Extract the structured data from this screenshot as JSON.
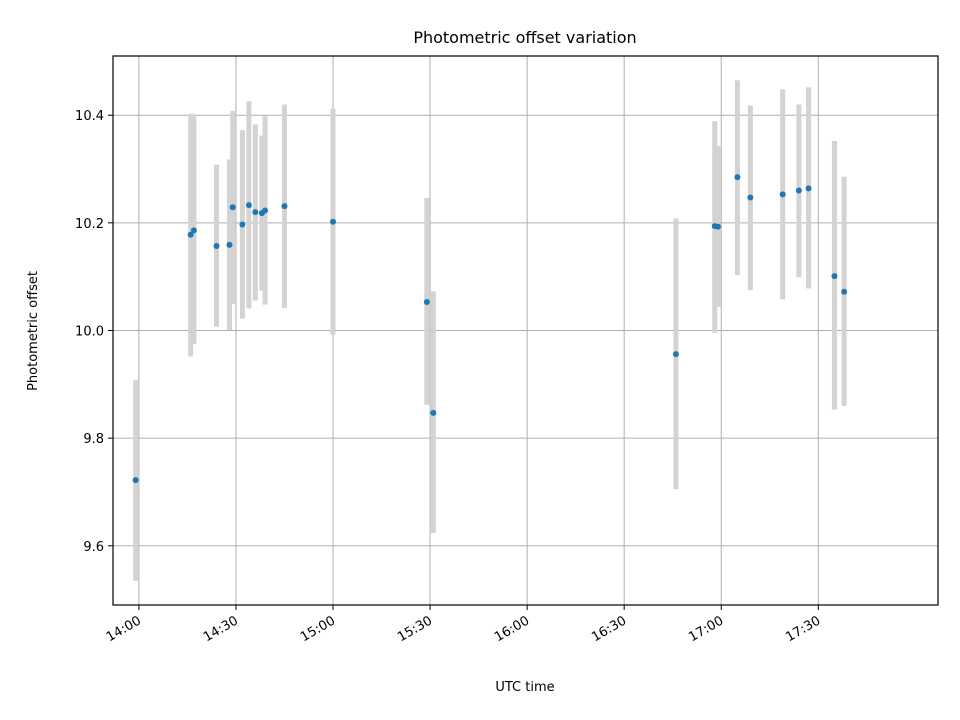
{
  "chart_data": {
    "type": "scatter",
    "title": "Photometric offset variation",
    "xlabel": "UTC time",
    "ylabel": "Photometric offset",
    "x_axis": "time",
    "xlim": [
      "13:52",
      "18:07"
    ],
    "ylim": [
      9.49,
      10.51
    ],
    "xticks": [
      "14:00",
      "14:30",
      "15:00",
      "15:30",
      "16:00",
      "16:30",
      "17:00",
      "17:30"
    ],
    "yticks": [
      9.6,
      9.8,
      10.0,
      10.2,
      10.4
    ],
    "grid": true,
    "colors": {
      "point": "#1f77b4",
      "errorbar": "#d3d3d3",
      "grid": "#b0b0b0"
    },
    "points": [
      {
        "x": "13:59",
        "y": 9.722,
        "ylo": 9.535,
        "yhi": 9.908
      },
      {
        "x": "14:16",
        "y": 10.178,
        "ylo": 9.952,
        "yhi": 10.403
      },
      {
        "x": "14:17",
        "y": 10.186,
        "ylo": 9.975,
        "yhi": 10.398
      },
      {
        "x": "14:24",
        "y": 10.157,
        "ylo": 10.007,
        "yhi": 10.308
      },
      {
        "x": "14:28",
        "y": 10.159,
        "ylo": 10.001,
        "yhi": 10.318
      },
      {
        "x": "14:29",
        "y": 10.229,
        "ylo": 10.049,
        "yhi": 10.408
      },
      {
        "x": "14:32",
        "y": 10.197,
        "ylo": 10.022,
        "yhi": 10.372
      },
      {
        "x": "14:34",
        "y": 10.233,
        "ylo": 10.041,
        "yhi": 10.426
      },
      {
        "x": "14:36",
        "y": 10.22,
        "ylo": 10.056,
        "yhi": 10.383
      },
      {
        "x": "14:38",
        "y": 10.218,
        "ylo": 10.074,
        "yhi": 10.362
      },
      {
        "x": "14:39",
        "y": 10.223,
        "ylo": 10.048,
        "yhi": 10.398
      },
      {
        "x": "14:45",
        "y": 10.231,
        "ylo": 10.042,
        "yhi": 10.42
      },
      {
        "x": "15:00",
        "y": 10.202,
        "ylo": 9.992,
        "yhi": 10.412
      },
      {
        "x": "15:29",
        "y": 10.053,
        "ylo": 9.862,
        "yhi": 10.246
      },
      {
        "x": "15:31",
        "y": 9.847,
        "ylo": 9.624,
        "yhi": 10.073
      },
      {
        "x": "16:46",
        "y": 9.956,
        "ylo": 9.705,
        "yhi": 10.208
      },
      {
        "x": "16:58",
        "y": 10.194,
        "ylo": 9.996,
        "yhi": 10.389
      },
      {
        "x": "16:59",
        "y": 10.193,
        "ylo": 10.044,
        "yhi": 10.343
      },
      {
        "x": "17:05",
        "y": 10.285,
        "ylo": 10.103,
        "yhi": 10.465
      },
      {
        "x": "17:09",
        "y": 10.247,
        "ylo": 10.075,
        "yhi": 10.418
      },
      {
        "x": "17:19",
        "y": 10.253,
        "ylo": 10.058,
        "yhi": 10.448
      },
      {
        "x": "17:24",
        "y": 10.26,
        "ylo": 10.099,
        "yhi": 10.42
      },
      {
        "x": "17:27",
        "y": 10.264,
        "ylo": 10.078,
        "yhi": 10.452
      },
      {
        "x": "17:35",
        "y": 10.101,
        "ylo": 9.853,
        "yhi": 10.352
      },
      {
        "x": "17:38",
        "y": 10.072,
        "ylo": 9.86,
        "yhi": 10.286
      }
    ]
  }
}
